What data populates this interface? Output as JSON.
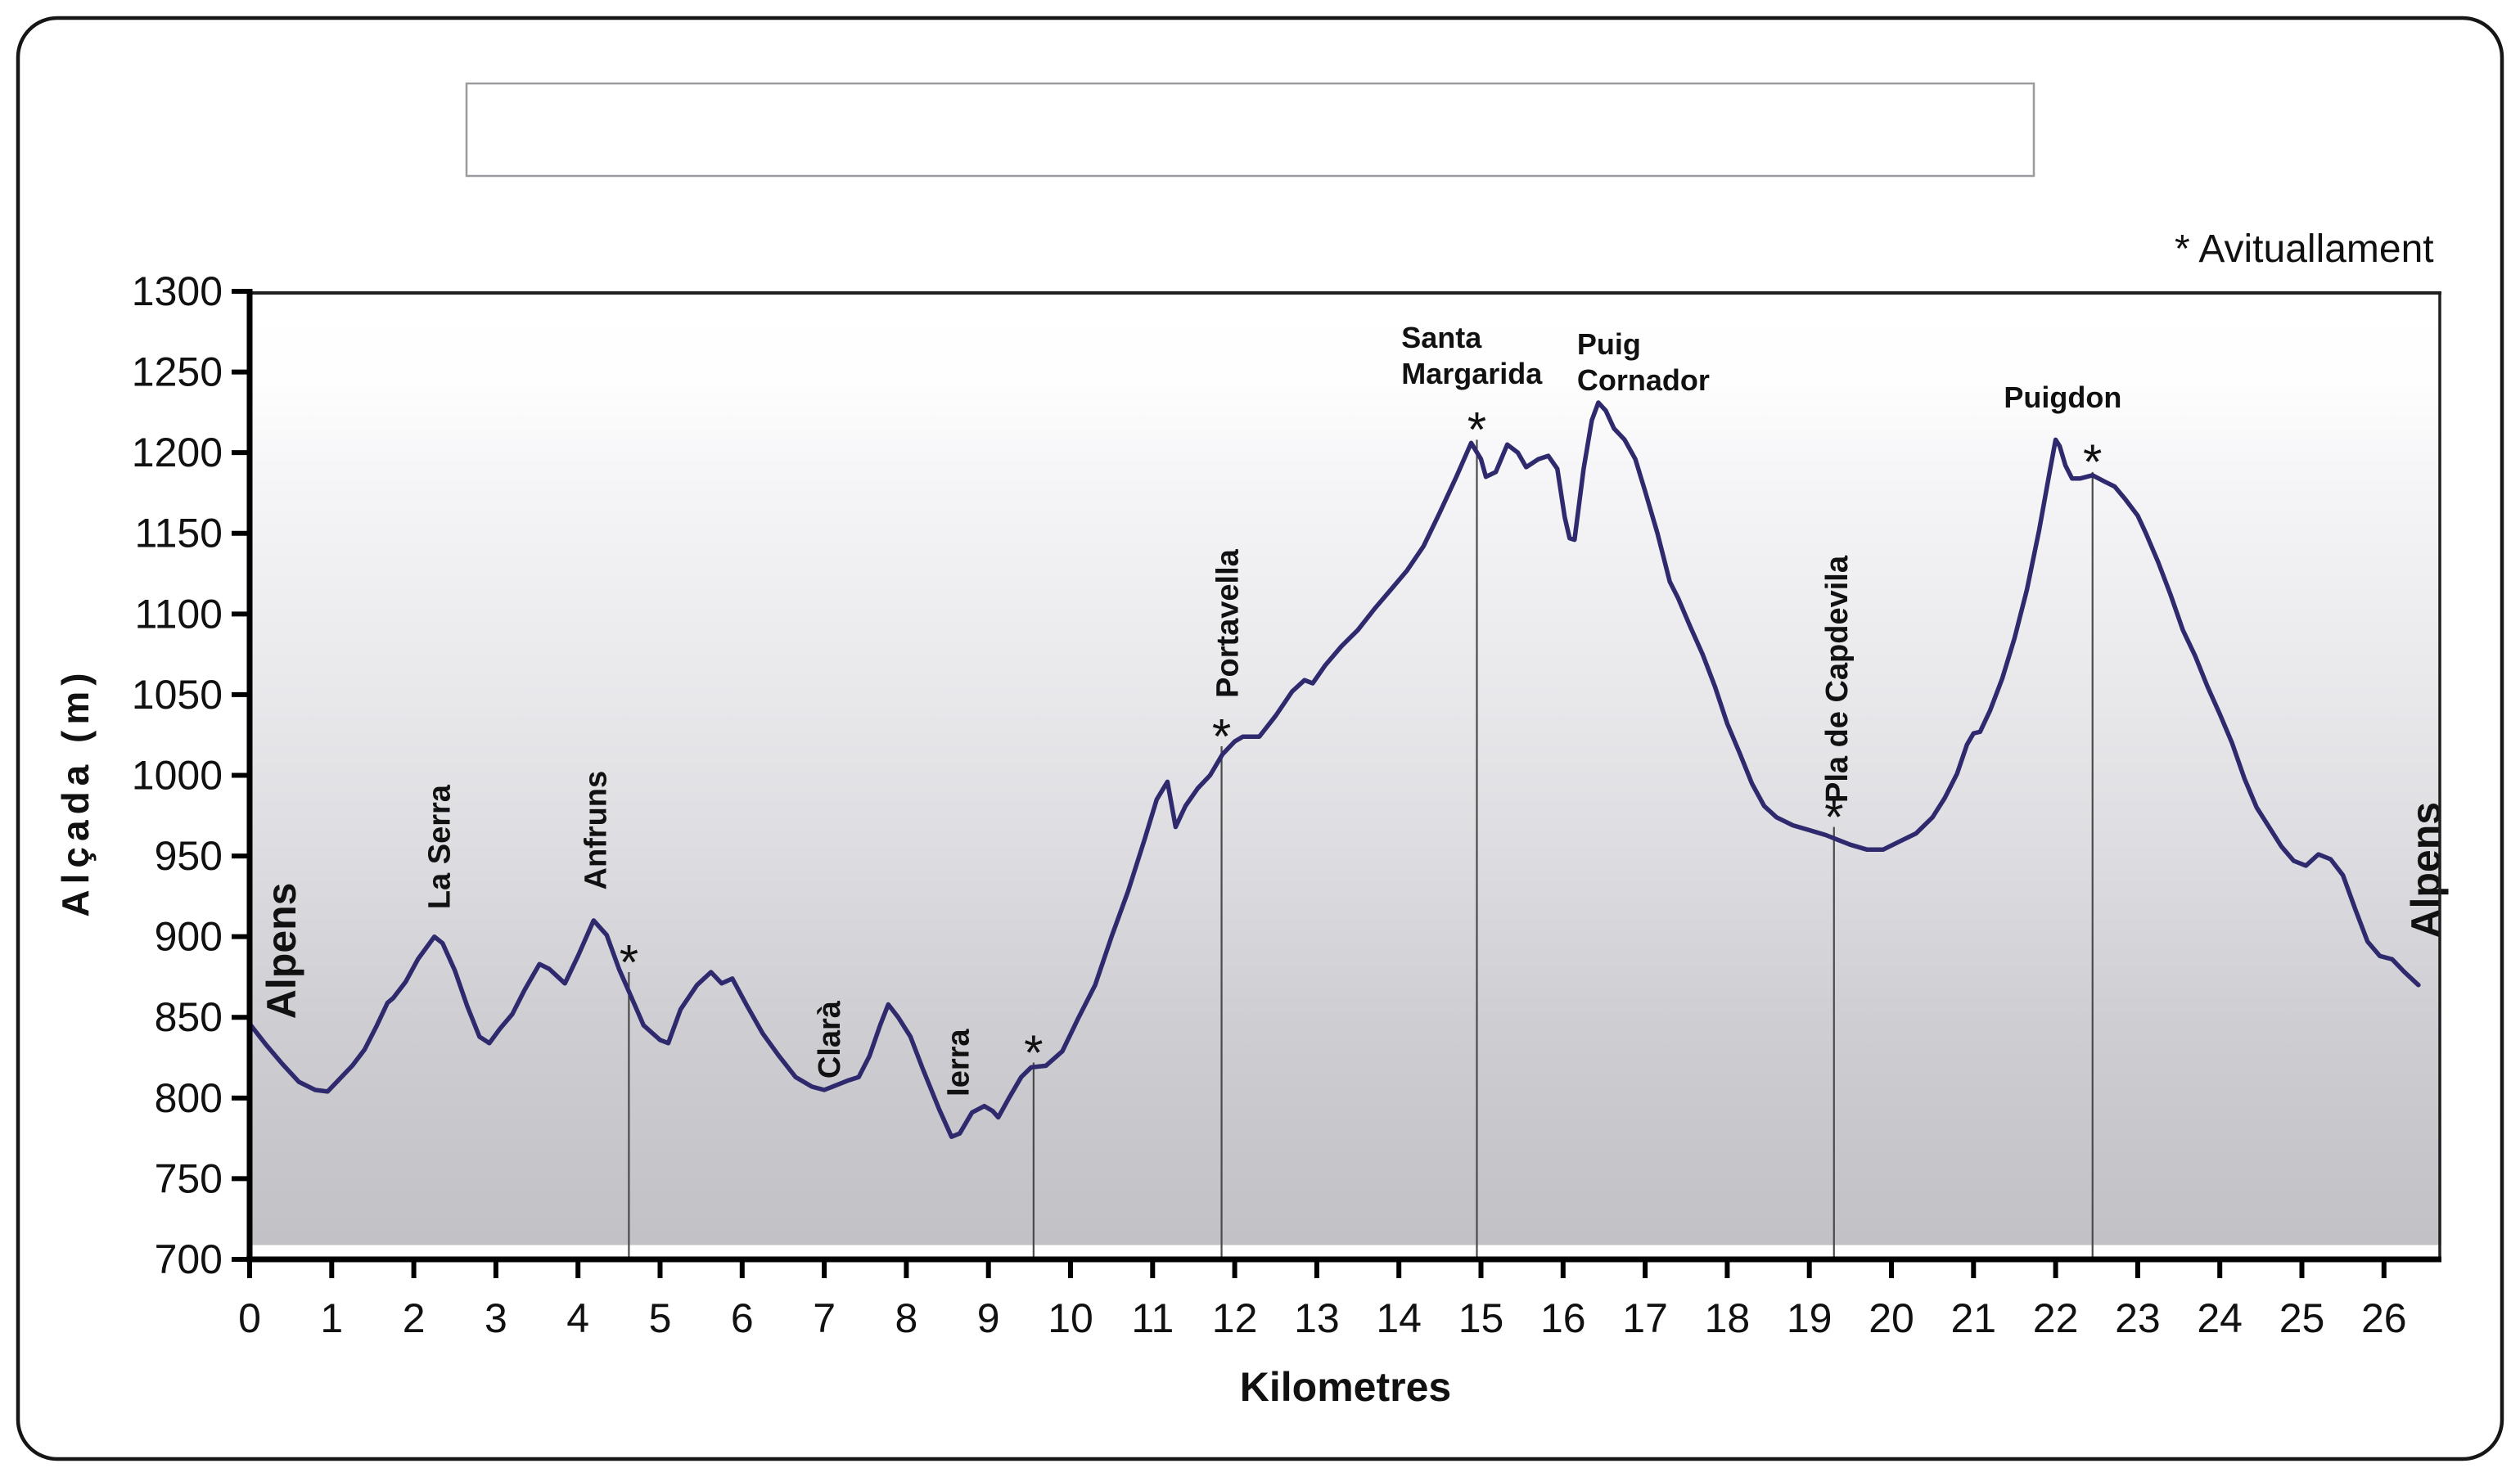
{
  "legend_note": "* Avituallament",
  "title_box_text": "",
  "y_axis": {
    "title": "Alçada (m)",
    "ticks": [
      700,
      750,
      800,
      850,
      900,
      950,
      1000,
      1050,
      1100,
      1150,
      1200,
      1250,
      1300
    ]
  },
  "x_axis": {
    "title": "Kilometres",
    "ticks": [
      0,
      1,
      2,
      3,
      4,
      5,
      6,
      7,
      8,
      9,
      10,
      11,
      12,
      13,
      14,
      15,
      16,
      17,
      18,
      19,
      20,
      21,
      22,
      23,
      24,
      25,
      26
    ]
  },
  "chart_data": {
    "type": "line",
    "title": "",
    "xlabel": "Kilometres",
    "ylabel": "Alçada (m)",
    "xlim": [
      0,
      26.7
    ],
    "ylim": [
      700,
      1300
    ],
    "grid": false,
    "legend_position": "top-right",
    "line_color": "#2f2a6e",
    "aid_station_note": "* Avituallament",
    "profile": [
      [
        0,
        846
      ],
      [
        0.2,
        833
      ],
      [
        0.4,
        821
      ],
      [
        0.6,
        810
      ],
      [
        0.8,
        805
      ],
      [
        0.95,
        804
      ],
      [
        1.1,
        812
      ],
      [
        1.25,
        820
      ],
      [
        1.4,
        830
      ],
      [
        1.55,
        845
      ],
      [
        1.68,
        859
      ],
      [
        1.75,
        862
      ],
      [
        1.9,
        872
      ],
      [
        2.05,
        886
      ],
      [
        2.25,
        900
      ],
      [
        2.35,
        896
      ],
      [
        2.5,
        879
      ],
      [
        2.65,
        857
      ],
      [
        2.8,
        838
      ],
      [
        2.92,
        834
      ],
      [
        3.05,
        843
      ],
      [
        3.2,
        852
      ],
      [
        3.35,
        867
      ],
      [
        3.53,
        883
      ],
      [
        3.65,
        880
      ],
      [
        3.84,
        871
      ],
      [
        4.0,
        888
      ],
      [
        4.19,
        910
      ],
      [
        4.35,
        901
      ],
      [
        4.5,
        880
      ],
      [
        4.62,
        866
      ],
      [
        4.8,
        845
      ],
      [
        5.0,
        836
      ],
      [
        5.1,
        834
      ],
      [
        5.25,
        855
      ],
      [
        5.45,
        870
      ],
      [
        5.62,
        878
      ],
      [
        5.75,
        871
      ],
      [
        5.88,
        874
      ],
      [
        6.05,
        858
      ],
      [
        6.25,
        840
      ],
      [
        6.45,
        826
      ],
      [
        6.65,
        813
      ],
      [
        6.85,
        807
      ],
      [
        7.0,
        805
      ],
      [
        7.15,
        808
      ],
      [
        7.3,
        811
      ],
      [
        7.42,
        813
      ],
      [
        7.55,
        826
      ],
      [
        7.68,
        845
      ],
      [
        7.78,
        858
      ],
      [
        7.9,
        850
      ],
      [
        8.05,
        838
      ],
      [
        8.2,
        818
      ],
      [
        8.4,
        793
      ],
      [
        8.55,
        776
      ],
      [
        8.65,
        778
      ],
      [
        8.8,
        791
      ],
      [
        8.95,
        795
      ],
      [
        9.05,
        792
      ],
      [
        9.12,
        788
      ],
      [
        9.25,
        800
      ],
      [
        9.4,
        813
      ],
      [
        9.52,
        819
      ],
      [
        9.7,
        820
      ],
      [
        9.9,
        829
      ],
      [
        10.1,
        850
      ],
      [
        10.3,
        870
      ],
      [
        10.5,
        900
      ],
      [
        10.7,
        928
      ],
      [
        10.9,
        960
      ],
      [
        11.05,
        985
      ],
      [
        11.18,
        996
      ],
      [
        11.28,
        968
      ],
      [
        11.4,
        981
      ],
      [
        11.55,
        992
      ],
      [
        11.7,
        1000
      ],
      [
        11.85,
        1013
      ],
      [
        12.0,
        1021
      ],
      [
        12.1,
        1024
      ],
      [
        12.3,
        1024
      ],
      [
        12.5,
        1037
      ],
      [
        12.7,
        1052
      ],
      [
        12.85,
        1059
      ],
      [
        12.95,
        1057
      ],
      [
        13.1,
        1068
      ],
      [
        13.3,
        1080
      ],
      [
        13.5,
        1090
      ],
      [
        13.7,
        1103
      ],
      [
        13.9,
        1115
      ],
      [
        14.1,
        1127
      ],
      [
        14.3,
        1142
      ],
      [
        14.5,
        1163
      ],
      [
        14.7,
        1185
      ],
      [
        14.88,
        1206
      ],
      [
        15.0,
        1196
      ],
      [
        15.06,
        1185
      ],
      [
        15.18,
        1188
      ],
      [
        15.32,
        1205
      ],
      [
        15.45,
        1200
      ],
      [
        15.55,
        1191
      ],
      [
        15.7,
        1196
      ],
      [
        15.82,
        1198
      ],
      [
        15.93,
        1190
      ],
      [
        16.02,
        1160
      ],
      [
        16.08,
        1147
      ],
      [
        16.14,
        1146
      ],
      [
        16.25,
        1190
      ],
      [
        16.35,
        1220
      ],
      [
        16.43,
        1231
      ],
      [
        16.52,
        1226
      ],
      [
        16.62,
        1215
      ],
      [
        16.75,
        1208
      ],
      [
        16.88,
        1196
      ],
      [
        17.0,
        1176
      ],
      [
        17.15,
        1150
      ],
      [
        17.3,
        1120
      ],
      [
        17.4,
        1110
      ],
      [
        17.55,
        1092
      ],
      [
        17.7,
        1075
      ],
      [
        17.85,
        1055
      ],
      [
        18.0,
        1032
      ],
      [
        18.15,
        1014
      ],
      [
        18.3,
        995
      ],
      [
        18.45,
        981
      ],
      [
        18.6,
        974
      ],
      [
        18.8,
        969
      ],
      [
        19.0,
        966
      ],
      [
        19.2,
        963
      ],
      [
        19.35,
        960
      ],
      [
        19.5,
        957
      ],
      [
        19.7,
        954
      ],
      [
        19.9,
        954
      ],
      [
        20.1,
        959
      ],
      [
        20.3,
        964
      ],
      [
        20.5,
        974
      ],
      [
        20.65,
        986
      ],
      [
        20.8,
        1001
      ],
      [
        20.92,
        1019
      ],
      [
        21.0,
        1026
      ],
      [
        21.08,
        1027
      ],
      [
        21.2,
        1040
      ],
      [
        21.35,
        1060
      ],
      [
        21.5,
        1085
      ],
      [
        21.65,
        1115
      ],
      [
        21.8,
        1152
      ],
      [
        21.92,
        1186
      ],
      [
        22.0,
        1208
      ],
      [
        22.05,
        1204
      ],
      [
        22.12,
        1192
      ],
      [
        22.2,
        1184
      ],
      [
        22.3,
        1184
      ],
      [
        22.45,
        1186
      ],
      [
        22.6,
        1182
      ],
      [
        22.72,
        1179
      ],
      [
        22.85,
        1171
      ],
      [
        23.0,
        1161
      ],
      [
        23.1,
        1150
      ],
      [
        23.25,
        1132
      ],
      [
        23.4,
        1112
      ],
      [
        23.55,
        1090
      ],
      [
        23.7,
        1074
      ],
      [
        23.85,
        1055
      ],
      [
        24.0,
        1038
      ],
      [
        24.15,
        1020
      ],
      [
        24.3,
        998
      ],
      [
        24.45,
        980
      ],
      [
        24.6,
        968
      ],
      [
        24.75,
        956
      ],
      [
        24.9,
        947
      ],
      [
        25.05,
        944
      ],
      [
        25.2,
        951
      ],
      [
        25.35,
        948
      ],
      [
        25.5,
        938
      ],
      [
        25.65,
        917
      ],
      [
        25.8,
        897
      ],
      [
        25.95,
        888
      ],
      [
        26.1,
        886
      ],
      [
        26.25,
        878
      ],
      [
        26.42,
        870
      ]
    ],
    "aid_stations": [
      {
        "symbol": "*",
        "km": 4.62,
        "elevation": 878
      },
      {
        "symbol": "*",
        "km": 9.55,
        "elevation": 822
      },
      {
        "symbol": "*",
        "km": 11.84,
        "elevation": 1018
      },
      {
        "symbol": "*",
        "km": 14.95,
        "elevation": 1208
      },
      {
        "symbol": "*",
        "km": 19.3,
        "elevation": 968
      },
      {
        "symbol": "*",
        "km": 22.45,
        "elevation": 1188
      }
    ],
    "waypoints": [
      {
        "name": "Alpens",
        "km": 0.38,
        "elevation": 849,
        "orientation": "vertical",
        "emphasis": true
      },
      {
        "name": "La Serra",
        "km": 2.3,
        "elevation": 917,
        "orientation": "vertical",
        "emphasis": false
      },
      {
        "name": "Anfruns",
        "km": 4.2,
        "elevation": 929,
        "orientation": "vertical",
        "emphasis": false
      },
      {
        "name": "Clarà",
        "km": 7.05,
        "elevation": 812,
        "orientation": "vertical",
        "emphasis": false
      },
      {
        "name": "Ierra",
        "km": 8.62,
        "elevation": 801,
        "orientation": "vertical",
        "emphasis": false
      },
      {
        "name": "Portavella",
        "km": 11.9,
        "elevation": 1048,
        "orientation": "vertical",
        "emphasis": false
      },
      {
        "name": "Santa Margarida",
        "lines": [
          "Santa",
          "Margarida"
        ],
        "km": 14.03,
        "elevation": 1265,
        "orientation": "horizontal",
        "emphasis": false
      },
      {
        "name": "Puig Cornador",
        "lines": [
          "Puig",
          "Cornador"
        ],
        "km": 16.17,
        "elevation": 1261,
        "orientation": "horizontal",
        "emphasis": false
      },
      {
        "name": "Pla de Capdevila",
        "km": 19.32,
        "elevation": 983,
        "orientation": "vertical",
        "emphasis": false
      },
      {
        "name": "Puigdon",
        "lines": [
          "Puigdon"
        ],
        "km": 21.37,
        "elevation": 1228,
        "orientation": "horizontal",
        "emphasis": false
      },
      {
        "name": "Alpens",
        "km": 26.5,
        "elevation": 899,
        "orientation": "vertical",
        "emphasis": true
      }
    ]
  }
}
